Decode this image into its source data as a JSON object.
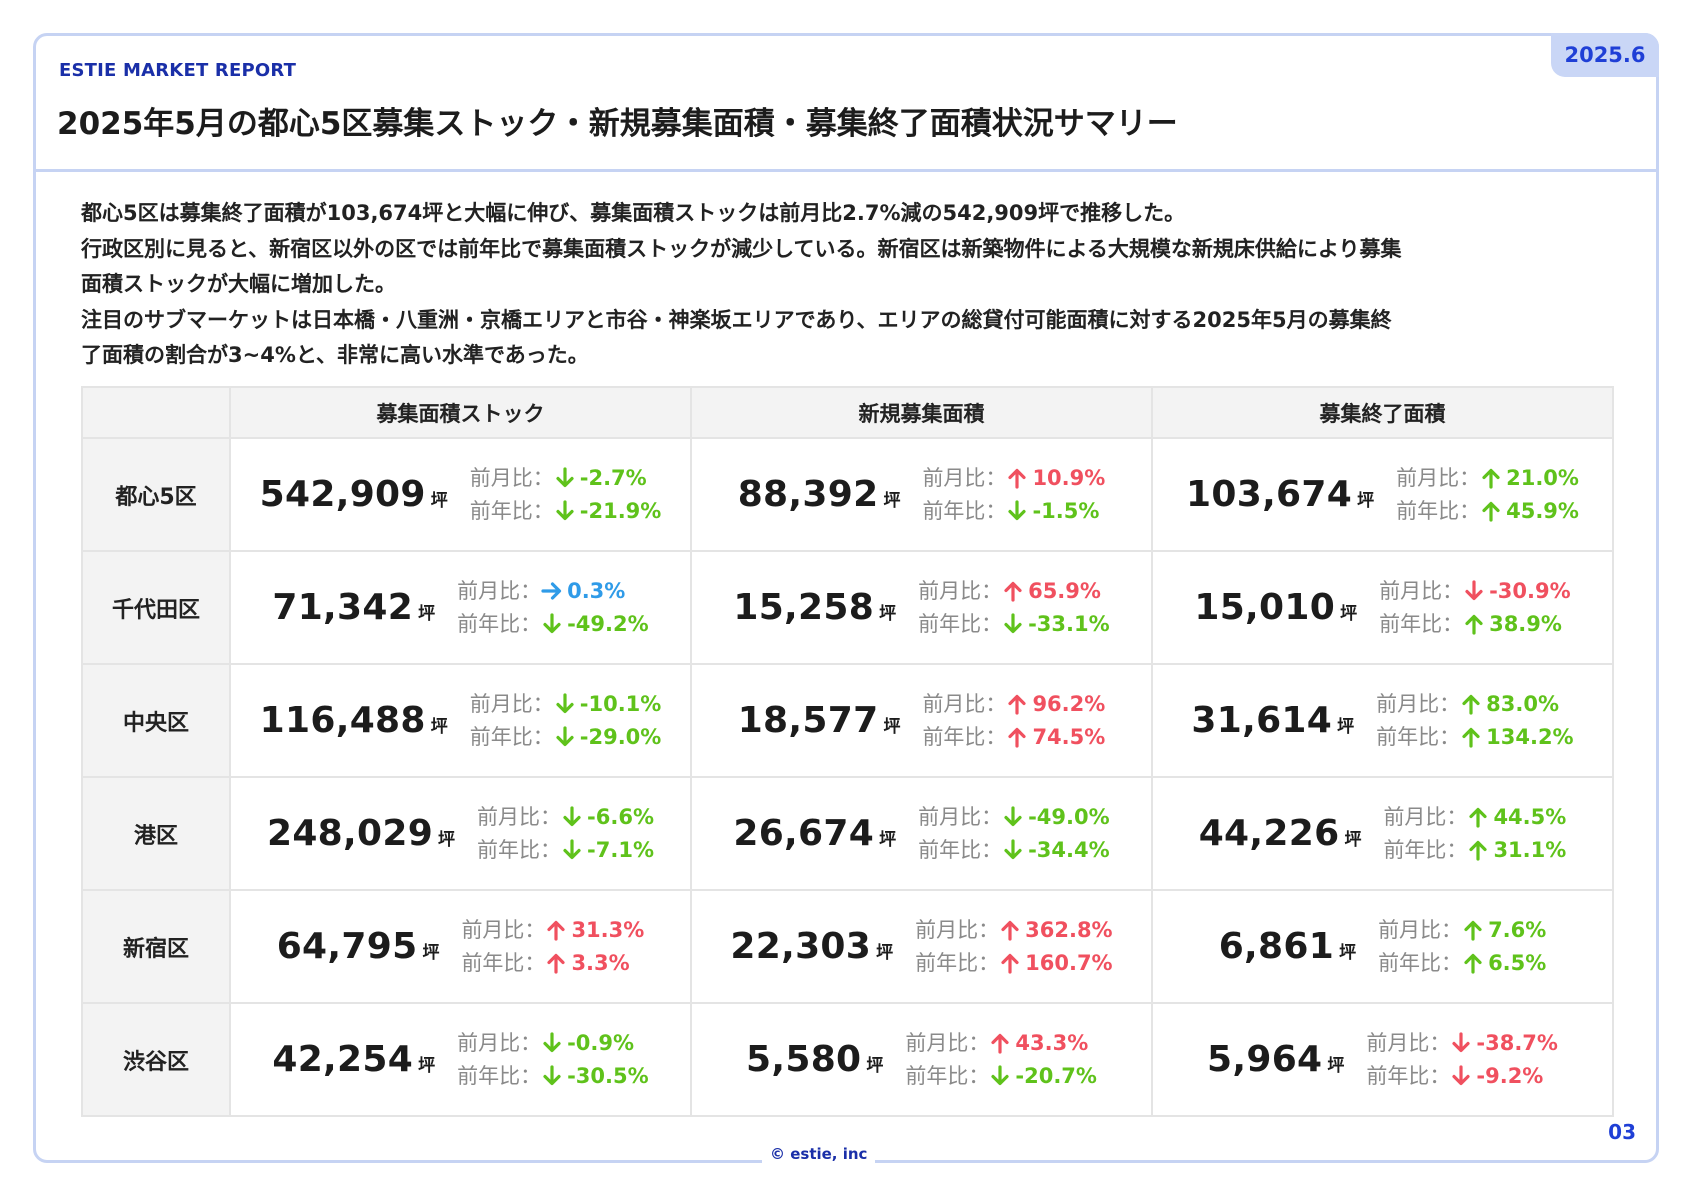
{
  "header": {
    "report_label": "ESTIE MARKET REPORT",
    "date_badge": "2025.6",
    "title": "2025年5月の都心5区募集ストック・新規募集面積・募集終了面積状況サマリー"
  },
  "summary_lines": [
    "都心5区は募集終了面積が103,674坪と大幅に伸び、募集面積ストックは前月比2.7%減の542,909坪で推移した。",
    "行政区別に見ると、新宿区以外の区では前年比で募集面積ストックが減少している。新宿区は新築物件による大規模な新規床供給により募集",
    "面積ストックが大幅に増加した。",
    "注目のサブマーケットは日本橋・八重洲・京橋エリアと市谷・神楽坂エリアであり、エリアの総貸付可能面積に対する2025年5月の募集終",
    "了面積の割合が3~4%と、非常に高い水準であった。"
  ],
  "table": {
    "columns": [
      "",
      "募集面積ストック",
      "新規募集面積",
      "募集終了面積"
    ],
    "unit": "坪",
    "mom_label": "前月比：",
    "yoy_label": "前年比：",
    "rows": [
      {
        "ward": "都心5区",
        "cells": [
          {
            "value": "542,909",
            "mom": "-2.7%",
            "mom_dir": "down",
            "yoy": "-21.9%",
            "yoy_dir": "down"
          },
          {
            "value": "88,392",
            "mom": "10.9%",
            "mom_dir": "up",
            "yoy": "-1.5%",
            "yoy_dir": "down"
          },
          {
            "value": "103,674",
            "mom": "21.0%",
            "mom_dir": "up",
            "yoy": "45.9%",
            "yoy_dir": "up"
          }
        ]
      },
      {
        "ward": "千代田区",
        "cells": [
          {
            "value": "71,342",
            "mom": "0.3%",
            "mom_dir": "flat",
            "yoy": "-49.2%",
            "yoy_dir": "down"
          },
          {
            "value": "15,258",
            "mom": "65.9%",
            "mom_dir": "up",
            "yoy": "-33.1%",
            "yoy_dir": "down"
          },
          {
            "value": "15,010",
            "mom": "-30.9%",
            "mom_dir": "down",
            "yoy": "38.9%",
            "yoy_dir": "up"
          }
        ]
      },
      {
        "ward": "中央区",
        "cells": [
          {
            "value": "116,488",
            "mom": "-10.1%",
            "mom_dir": "down",
            "yoy": "-29.0%",
            "yoy_dir": "down"
          },
          {
            "value": "18,577",
            "mom": "96.2%",
            "mom_dir": "up",
            "yoy": "74.5%",
            "yoy_dir": "up"
          },
          {
            "value": "31,614",
            "mom": "83.0%",
            "mom_dir": "up",
            "yoy": "134.2%",
            "yoy_dir": "up"
          }
        ]
      },
      {
        "ward": "港区",
        "cells": [
          {
            "value": "248,029",
            "mom": "-6.6%",
            "mom_dir": "down",
            "yoy": "-7.1%",
            "yoy_dir": "down"
          },
          {
            "value": "26,674",
            "mom": "-49.0%",
            "mom_dir": "down",
            "yoy": "-34.4%",
            "yoy_dir": "down"
          },
          {
            "value": "44,226",
            "mom": "44.5%",
            "mom_dir": "up",
            "yoy": "31.1%",
            "yoy_dir": "up"
          }
        ]
      },
      {
        "ward": "新宿区",
        "cells": [
          {
            "value": "64,795",
            "mom": "31.3%",
            "mom_dir": "up",
            "yoy": "3.3%",
            "yoy_dir": "up"
          },
          {
            "value": "22,303",
            "mom": "362.8%",
            "mom_dir": "up",
            "yoy": "160.7%",
            "yoy_dir": "up"
          },
          {
            "value": "6,861",
            "mom": "7.6%",
            "mom_dir": "up",
            "yoy": "6.5%",
            "yoy_dir": "up"
          }
        ]
      },
      {
        "ward": "渋谷区",
        "cells": [
          {
            "value": "42,254",
            "mom": "-0.9%",
            "mom_dir": "down",
            "yoy": "-30.5%",
            "yoy_dir": "down"
          },
          {
            "value": "5,580",
            "mom": "43.3%",
            "mom_dir": "up",
            "yoy": "-20.7%",
            "yoy_dir": "down"
          },
          {
            "value": "5,964",
            "mom": "-38.7%",
            "mom_dir": "down",
            "yoy": "-9.2%",
            "yoy_dir": "down"
          }
        ]
      }
    ]
  },
  "footer": {
    "copyright": "© estie, inc",
    "page_number": "03"
  },
  "colors": {
    "accent": "#1a2fa8",
    "frame": "#c6d3f3",
    "good_green": "#5fc21b",
    "bad_red": "#f0505f",
    "flat_blue": "#2f9be8"
  },
  "icons": {
    "down": "arrow-down-icon",
    "up": "arrow-up-icon",
    "flat": "arrow-right-icon"
  }
}
